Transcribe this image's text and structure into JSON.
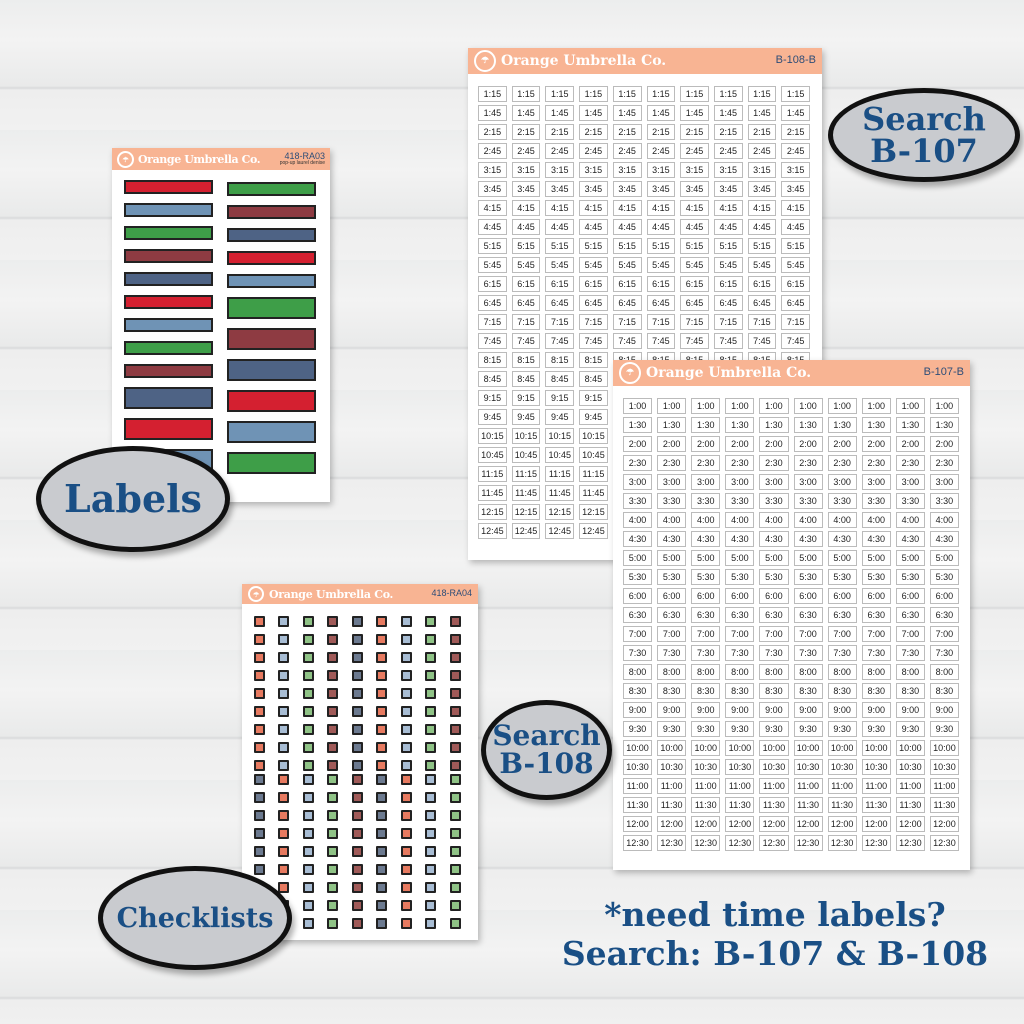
{
  "brand": "Orange Umbrella Co.",
  "colors": {
    "header": "#f8b493",
    "accent_text": "#1a4f85"
  },
  "labels_sheet": {
    "code": "418-RA03",
    "subtitle": "pop-up laurel denise",
    "left": [
      "#d42030",
      "#6f93b5",
      "#3e9e48",
      "#8e3b42",
      "#4e6385",
      "#d42030",
      "#6f93b5",
      "#3e9e48",
      "#8e3b42",
      "#4e6385",
      "#d42030",
      "#6f93b5"
    ],
    "right": [
      "#3e9e48",
      "#8e3b42",
      "#4e6385",
      "#d42030",
      "#6f93b5",
      "#3e9e48",
      "#8e3b42",
      "#4e6385",
      "#d42030",
      "#6f93b5",
      "#3e9e48"
    ]
  },
  "checklist_sheet": {
    "code": "418-RA04",
    "top_cols": [
      "#e77a60",
      "#a8bdd4",
      "#8fc386",
      "#a05a58",
      "#6c7a90",
      "#e77a60",
      "#a8bdd4",
      "#8fc386",
      "#a05a58"
    ],
    "bottom_cols": [
      "#6c7a90",
      "#e77a60",
      "#a8bdd4",
      "#8fc386",
      "#a05a58",
      "#6c7a90",
      "#e77a60",
      "#a8bdd4",
      "#8fc386"
    ]
  },
  "sheet_b108": {
    "code": "B-108-B",
    "times": [
      "1:15",
      "1:45",
      "2:15",
      "2:45",
      "3:15",
      "3:45",
      "4:15",
      "4:45",
      "5:15",
      "5:45",
      "6:15",
      "6:45",
      "7:15",
      "7:45",
      "8:15",
      "8:45",
      "9:15",
      "9:45",
      "10:15",
      "10:45",
      "11:15",
      "11:45",
      "12:15",
      "12:45"
    ]
  },
  "sheet_b107": {
    "code": "B-107-B",
    "times": [
      "1:00",
      "1:30",
      "2:00",
      "2:30",
      "3:00",
      "3:30",
      "4:00",
      "4:30",
      "5:00",
      "5:30",
      "6:00",
      "6:30",
      "7:00",
      "7:30",
      "8:00",
      "8:30",
      "9:00",
      "9:30",
      "10:00",
      "10:30",
      "11:00",
      "11:30",
      "12:00",
      "12:30"
    ]
  },
  "badges": {
    "search_b107": [
      "Search",
      "B-107"
    ],
    "labels": "Labels",
    "search_b108": [
      "Search",
      "B-108"
    ],
    "checklists": "Checklists"
  },
  "promo": {
    "line1": "*need time labels?",
    "line2": "Search: B-107 & B-108"
  }
}
